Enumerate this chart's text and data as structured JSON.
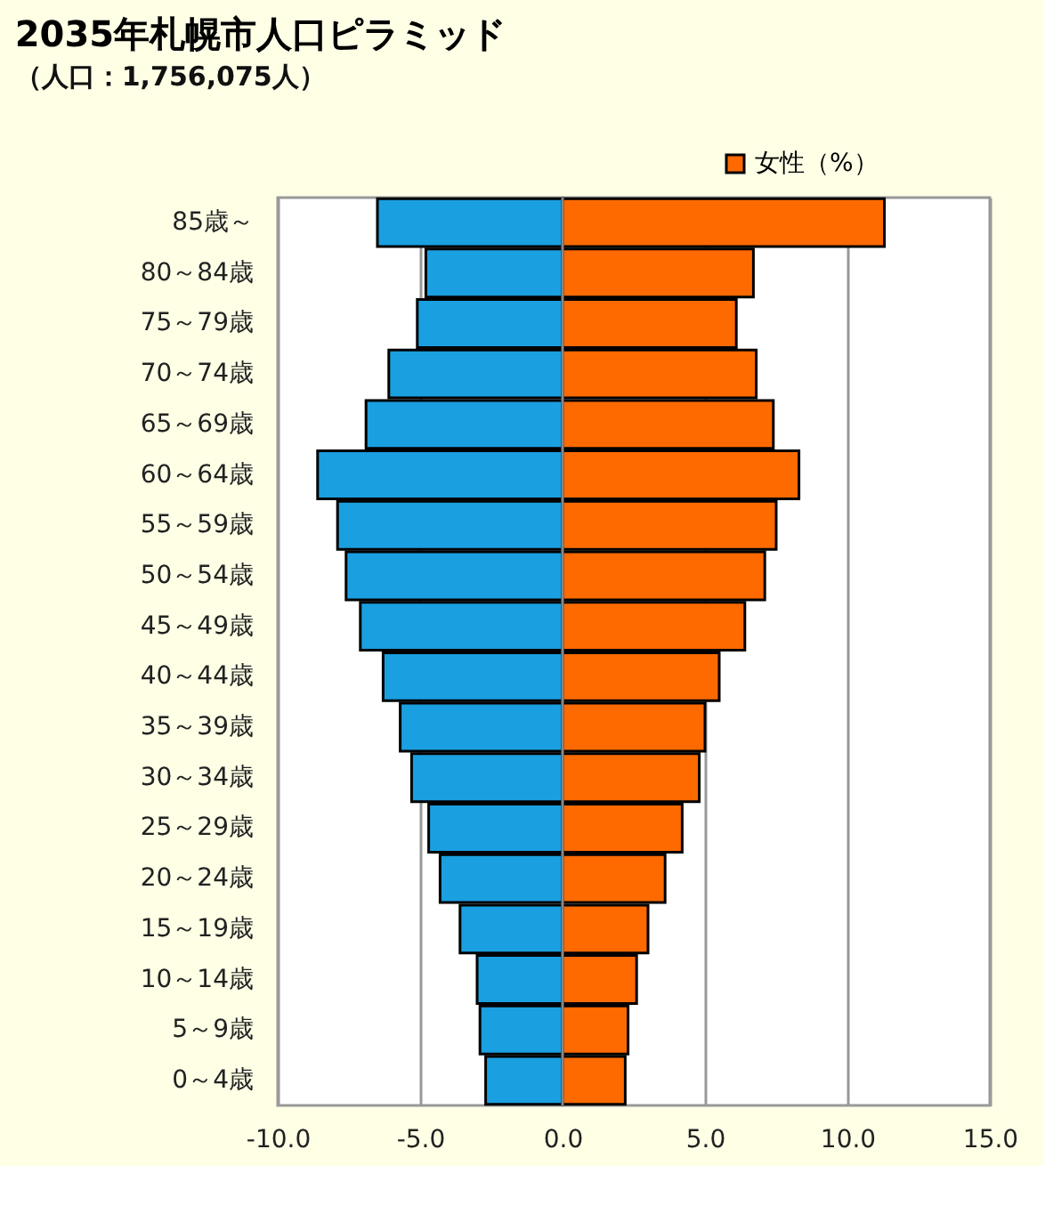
{
  "chart_data": {
    "type": "bar",
    "orientation": "horizontal",
    "title": "2035年札幌市人口ピラミッド",
    "subtitle": "（人口：1,756,075人）",
    "categories": [
      "85歳～",
      "80～84歳",
      "75～79歳",
      "70～74歳",
      "65～69歳",
      "60～64歳",
      "55～59歳",
      "50～54歳",
      "45～49歳",
      "40～44歳",
      "35～39歳",
      "30～34歳",
      "25～29歳",
      "20～24歳",
      "15～19歳",
      "10～14歳",
      "5～9歳",
      "0～4歳"
    ],
    "series": [
      {
        "color": "#1a9fe0",
        "values": [
          -6.5,
          -4.8,
          -5.1,
          -6.1,
          -6.9,
          -8.6,
          -7.9,
          -7.6,
          -7.1,
          -6.3,
          -5.7,
          -5.3,
          -4.7,
          -4.3,
          -3.6,
          -3.0,
          -2.9,
          -2.7
        ]
      },
      {
        "name": "女性（%）",
        "color": "#ff6a00",
        "values": [
          11.3,
          6.7,
          6.1,
          6.8,
          7.4,
          8.3,
          7.5,
          7.1,
          6.4,
          5.5,
          5.0,
          4.8,
          4.2,
          3.6,
          3.0,
          2.6,
          2.3,
          2.2
        ]
      }
    ],
    "xlim": [
      -10,
      15
    ],
    "xticks": [
      {
        "value": -10,
        "label": "-10.0"
      },
      {
        "value": -5,
        "label": "-5.0"
      },
      {
        "value": 0,
        "label": "0.0"
      },
      {
        "value": 5,
        "label": "5.0"
      },
      {
        "value": 10,
        "label": "10.0"
      },
      {
        "value": 15,
        "label": "15.0"
      }
    ],
    "stacked": true,
    "grid": "x",
    "legend": "top right"
  }
}
